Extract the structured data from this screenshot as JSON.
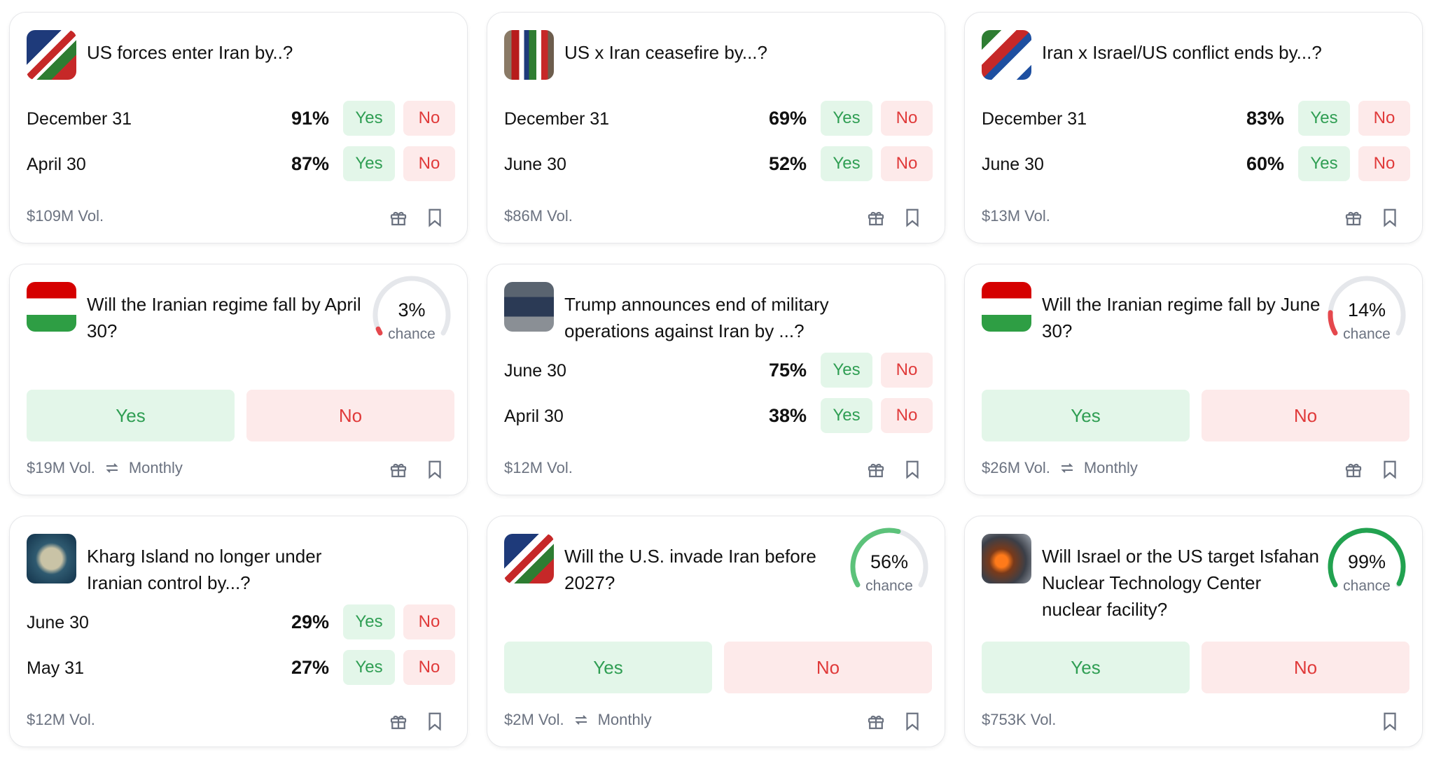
{
  "colors": {
    "yes_bg": "#e3f6e9",
    "yes_text": "#2f9e53",
    "no_bg": "#fdeaea",
    "no_text": "#e03a3a",
    "gauge_track": "#e5e7eb"
  },
  "cards": [
    {
      "icon": "us-iran-flag-image",
      "title": "US forces enter Iran by..?",
      "type": "multi",
      "rows": [
        {
          "label": "December 31",
          "pct": "91%"
        },
        {
          "label": "April 30",
          "pct": "87%"
        }
      ],
      "volume": "$109M Vol.",
      "gift": true
    },
    {
      "icon": "us-iran-flags-photo",
      "title": "US x Iran ceasefire by...?",
      "type": "multi",
      "rows": [
        {
          "label": "December 31",
          "pct": "69%"
        },
        {
          "label": "June 30",
          "pct": "52%"
        }
      ],
      "volume": "$86M Vol.",
      "gift": true
    },
    {
      "icon": "iran-israel-flag-image",
      "title": "Iran x Israel/US conflict ends by...?",
      "type": "multi",
      "rows": [
        {
          "label": "December 31",
          "pct": "83%"
        },
        {
          "label": "June 30",
          "pct": "60%"
        }
      ],
      "volume": "$13M Vol.",
      "gift": true
    },
    {
      "icon": "iran-flag-image",
      "title": "Will the Iranian regime fall by April 30?",
      "type": "binary",
      "chance": 3,
      "chance_label": "3%",
      "chance_word": "chance",
      "volume": "$19M Vol.",
      "recurrence": "Monthly",
      "gift": true
    },
    {
      "icon": "trump-photo",
      "title": "Trump announces end of military operations against Iran by ...?",
      "type": "multi",
      "rows": [
        {
          "label": "June 30",
          "pct": "75%"
        },
        {
          "label": "April 30",
          "pct": "38%"
        }
      ],
      "volume": "$12M Vol.",
      "gift": true
    },
    {
      "icon": "iran-flag-image",
      "title": "Will the Iranian regime fall by June 30?",
      "type": "binary",
      "chance": 14,
      "chance_label": "14%",
      "chance_word": "chance",
      "volume": "$26M Vol.",
      "recurrence": "Monthly",
      "gift": true
    },
    {
      "icon": "kharg-island-image",
      "title": "Kharg Island no longer under Iranian control by...?",
      "type": "multi",
      "rows": [
        {
          "label": "June 30",
          "pct": "29%"
        },
        {
          "label": "May 31",
          "pct": "27%"
        }
      ],
      "volume": "$12M Vol.",
      "gift": true
    },
    {
      "icon": "us-iran-flag-image",
      "title": "Will the U.S. invade Iran before 2027?",
      "type": "binary",
      "chance": 56,
      "chance_label": "56%",
      "chance_word": "chance",
      "volume": "$2M Vol.",
      "recurrence": "Monthly",
      "gift": true
    },
    {
      "icon": "explosion-photo",
      "title": "Will Israel or the US target Isfahan Nuclear Technology Center nuclear facility?",
      "type": "binary",
      "chance": 99,
      "chance_label": "99%",
      "chance_word": "chance",
      "volume": "$753K Vol.",
      "gift": false
    }
  ],
  "labels": {
    "yes": "Yes",
    "no": "No"
  }
}
